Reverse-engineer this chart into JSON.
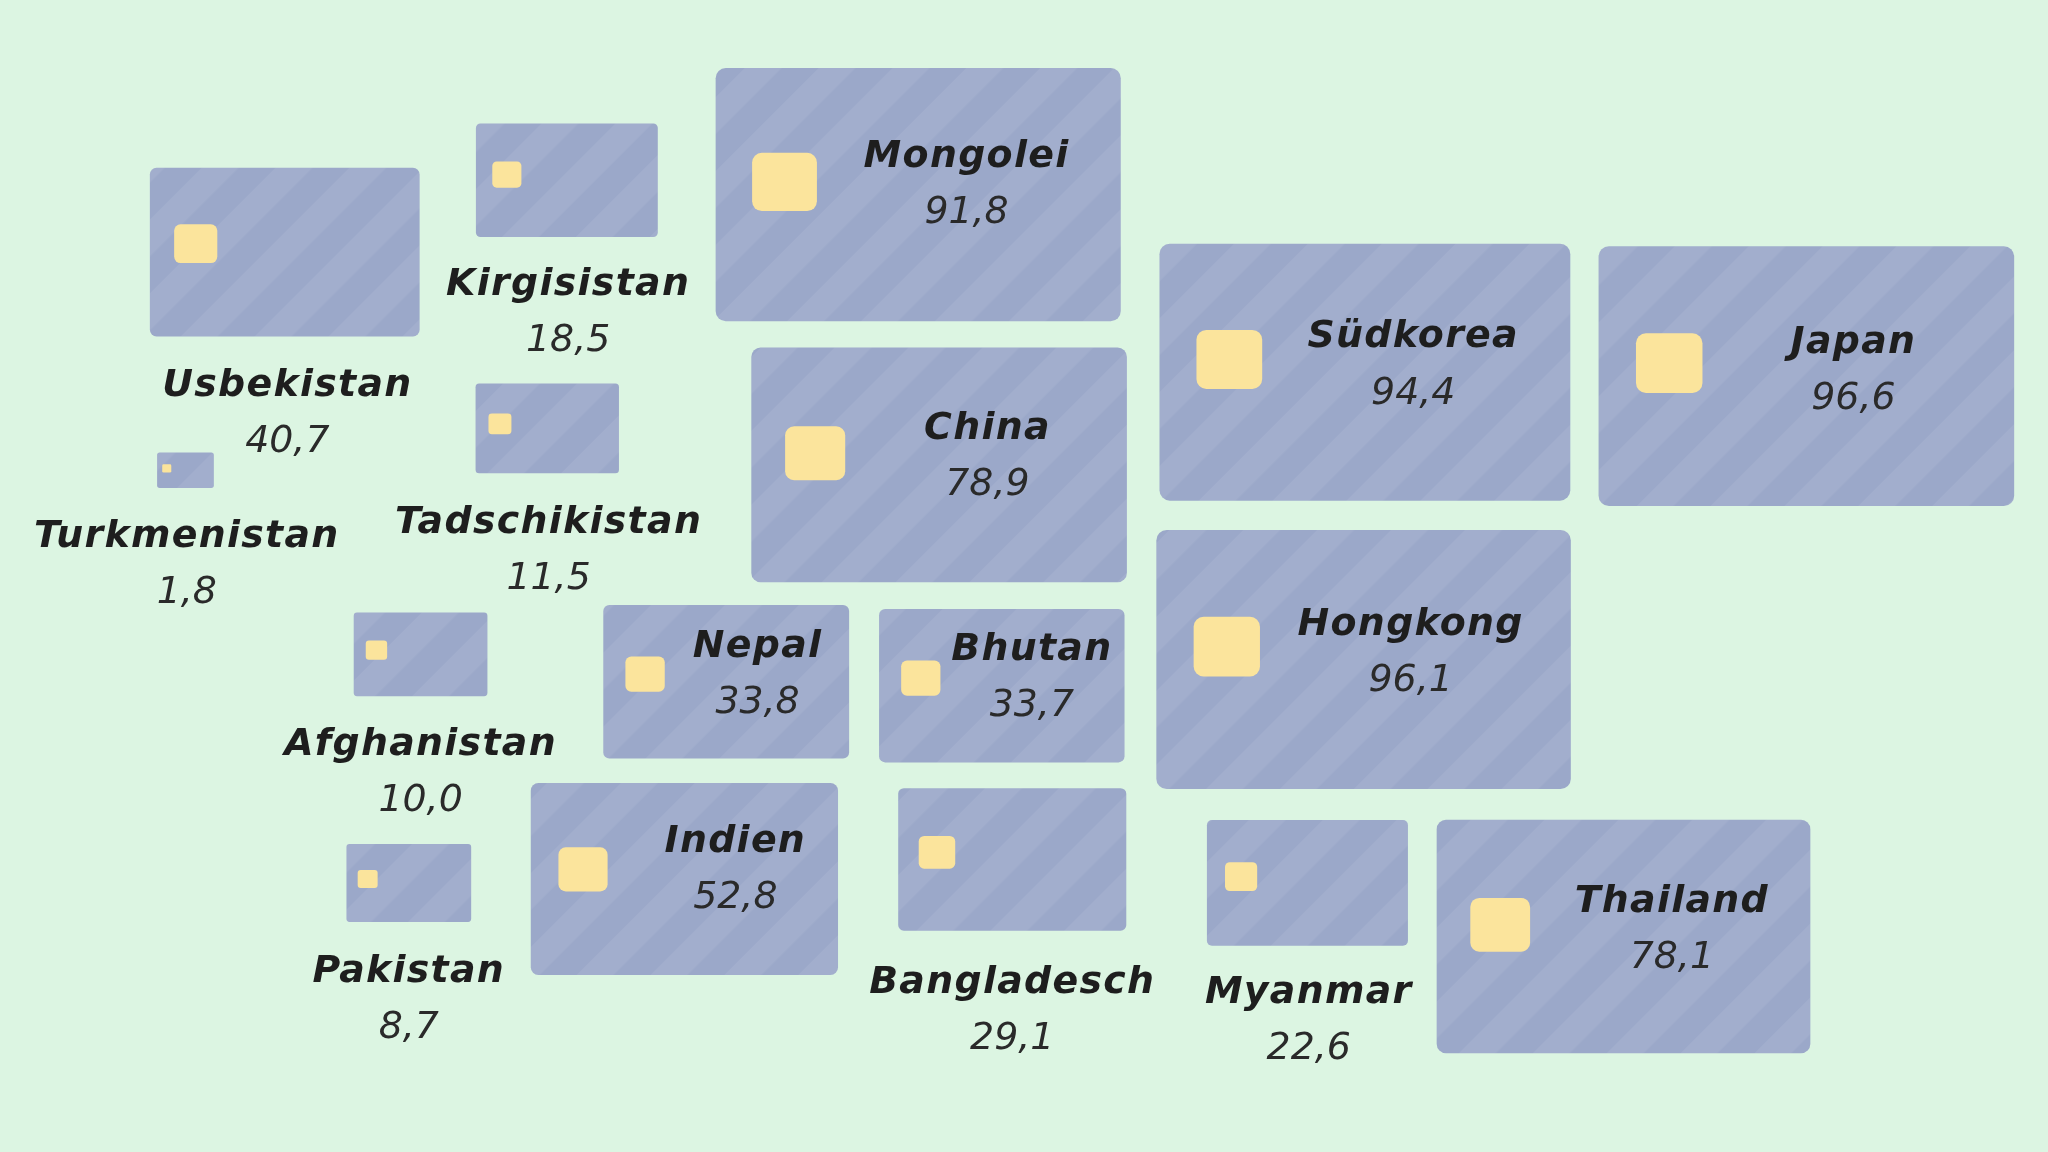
{
  "chart_data": {
    "type": "other",
    "color": "#9ba8c9",
    "categories": [
      "Usbekistan",
      "Kirgisistan",
      "Mongolei",
      "Turkmenistan",
      "Tadschikistan",
      "China",
      "Südkorea",
      "Japan",
      "Afghanistan",
      "Nepal",
      "Bhutan",
      "Hongkong",
      "Pakistan",
      "Indien",
      "Bangladesch",
      "Myanmar",
      "Thailand"
    ],
    "values": [
      40.7,
      18.5,
      91.8,
      1.8,
      11.5,
      78.9,
      94.4,
      96.6,
      10.0,
      33.8,
      33.7,
      96.1,
      8.7,
      52.8,
      29.1,
      22.6,
      78.1
    ],
    "value_labels": [
      "40,7",
      "18,5",
      "91,8",
      "1,8",
      "11,5",
      "78,9",
      "94,4",
      "96,6",
      "10,0",
      "33,8",
      "33,7",
      "96,1",
      "8,7",
      "52,8",
      "29,1",
      "22,6",
      "78,1"
    ]
  }
}
